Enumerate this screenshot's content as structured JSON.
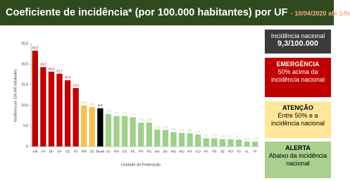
{
  "chart_data": {
    "type": "bar",
    "title": "Coeficiente de incidência* (por 100.000 habitantes) por UF",
    "subtitle": "- 10/04/2020 até 14h",
    "y_label": "Incidência por 100.000 habitantes",
    "x_label": "Unidade da Federação",
    "categories": [
      "AM",
      "AP",
      "DF",
      "SP",
      "CE",
      "RJ",
      "RR",
      "SC",
      "Brasil",
      "AC",
      "RN",
      "ES",
      "PE",
      "PR",
      "RS",
      "MA",
      "BA",
      "MS",
      "MG",
      "MT",
      "GO",
      "PA",
      "PB",
      "SE",
      "RO",
      "TO",
      "AL",
      "PI"
    ],
    "values": [
      23.3,
      19.3,
      18.2,
      17.7,
      16.1,
      14.2,
      10.0,
      9.6,
      9.3,
      7.9,
      7.4,
      7.4,
      7.1,
      5.8,
      5.8,
      4.1,
      4.0,
      3.5,
      3.3,
      3.2,
      2.9,
      2.0,
      2.0,
      1.8,
      1.8,
      1.7,
      1.2,
      1.2
    ],
    "value_labels": [
      "23,3",
      "19,3",
      "18,2",
      "17,7",
      "16,1",
      "14,2",
      "10,0",
      "9,6",
      "9,3",
      "7,9",
      "7,4",
      "7,4",
      "7,1",
      "5,8",
      "5,8",
      "4,1",
      "4,0",
      "3,5",
      "3,3",
      "3,2",
      "2,9",
      "2,0",
      "2,0",
      "1,8",
      "1,8",
      "1,7",
      "1,2",
      "1,2"
    ],
    "colors": [
      "#c00000",
      "#c00000",
      "#c00000",
      "#c00000",
      "#c00000",
      "#c00000",
      "#f2c14e",
      "#f2c14e",
      "#000000",
      "#9fd08a",
      "#9fd08a",
      "#9fd08a",
      "#9fd08a",
      "#9fd08a",
      "#9fd08a",
      "#9fd08a",
      "#9fd08a",
      "#9fd08a",
      "#9fd08a",
      "#9fd08a",
      "#9fd08a",
      "#9fd08a",
      "#9fd08a",
      "#9fd08a",
      "#9fd08a",
      "#9fd08a",
      "#9fd08a",
      "#9fd08a"
    ],
    "ylim": [
      0,
      25
    ],
    "yticks": [
      0,
      {
        "value": 5,
        "label": "5,0"
      },
      {
        "value": 10,
        "label": "10,0"
      },
      {
        "value": 15,
        "label": "15,0"
      },
      {
        "value": 20,
        "label": "20,0"
      },
      {
        "value": 25,
        "label": "25,0"
      }
    ],
    "grid": false
  },
  "panels": [
    {
      "title": "Incidência nacional",
      "text": "9,3/100.000"
    },
    {
      "title": "EMERGÊNCIA",
      "text": "50% acima da incidência nacional"
    },
    {
      "title": "ATENÇÃO",
      "text": "Entre 50% e a incidência nacional"
    },
    {
      "title": "ALERTA",
      "text": "Abaixo da incidência nacional"
    }
  ]
}
